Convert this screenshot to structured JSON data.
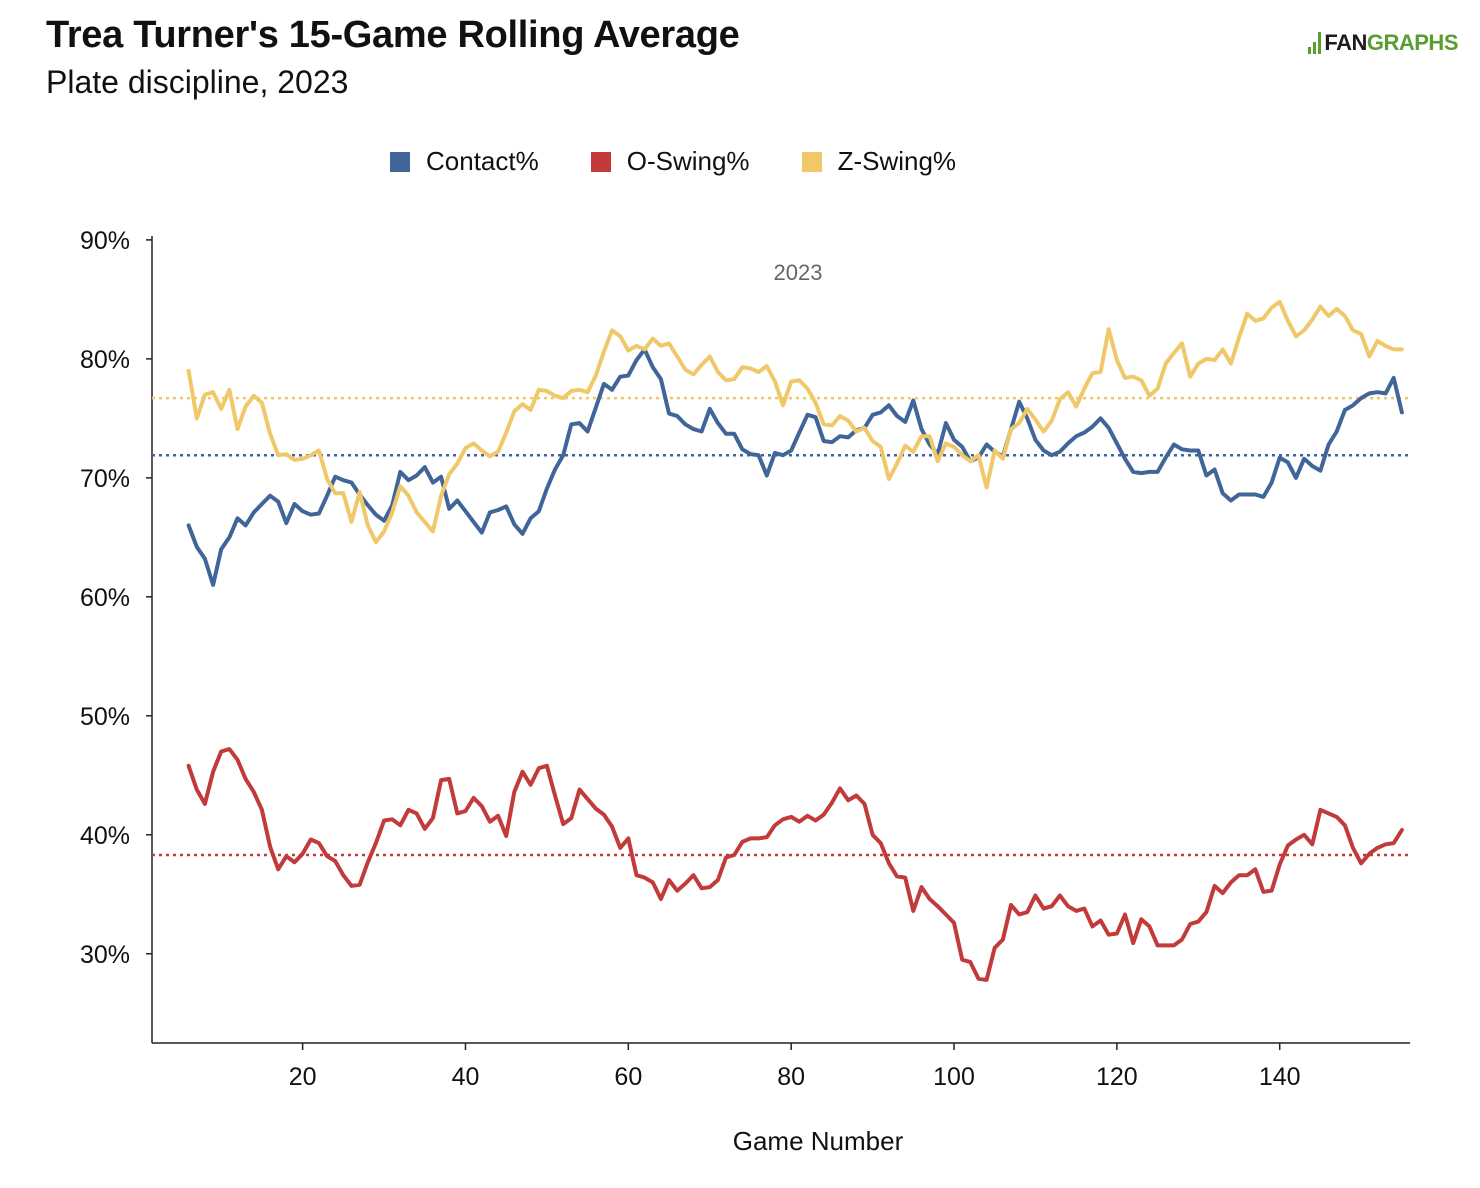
{
  "header": {
    "title": "Trea Turner's 15-Game Rolling Average",
    "subtitle": "Plate discipline, 2023",
    "logo_text_a": "FAN",
    "logo_text_b": "GRAPHS"
  },
  "colors": {
    "contact": "#3f6599",
    "oswing": "#c23a3a",
    "zswing": "#f0c869",
    "axis": "#222222",
    "logo_green": "#5a9e2f"
  },
  "chart_data": {
    "type": "line",
    "title": "Trea Turner's 15-Game Rolling Average",
    "subtitle": "Plate discipline, 2023",
    "xlabel": "Game Number",
    "ylabel": "",
    "xlim": [
      1.5,
      156
    ],
    "ylim": [
      22.5,
      91
    ],
    "x_ticks": [
      20,
      40,
      60,
      80,
      100,
      120,
      140
    ],
    "y_ticks": [
      30,
      40,
      50,
      60,
      70,
      80,
      90
    ],
    "y_tick_labels": [
      "30%",
      "40%",
      "50%",
      "60%",
      "70%",
      "80%",
      "90%"
    ],
    "annotation": "2023",
    "legend": [
      "Contact%",
      "O-Swing%",
      "Z-Swing%"
    ],
    "legend_position": "top",
    "grid": false,
    "reference_lines": [
      {
        "series": "Contact%",
        "value": 71.9
      },
      {
        "series": "O-Swing%",
        "value": 38.3
      },
      {
        "series": "Z-Swing%",
        "value": 76.7
      }
    ],
    "series": [
      {
        "name": "Contact%",
        "x": [
          6,
          7,
          8,
          9,
          10,
          11,
          12,
          13,
          14,
          15,
          16,
          17,
          18,
          19,
          20,
          21,
          22,
          23,
          24,
          25,
          26,
          27,
          28,
          29,
          30,
          31,
          32,
          33,
          34,
          35,
          36,
          37,
          38,
          39,
          40,
          41,
          42,
          43,
          44,
          45,
          46,
          47,
          48,
          49,
          50,
          51,
          52,
          53,
          54,
          55,
          56,
          57,
          58,
          59,
          60,
          61,
          62,
          63,
          64,
          65,
          66,
          67,
          68,
          69,
          70,
          71,
          72,
          73,
          74,
          75,
          76,
          77,
          78,
          79,
          80,
          81,
          82,
          83,
          84,
          85,
          86,
          87,
          88,
          89,
          90,
          91,
          92,
          93,
          94,
          95,
          96,
          97,
          98,
          99,
          100,
          101,
          102,
          103,
          104,
          105,
          106,
          107,
          108,
          109,
          110,
          111,
          112,
          113,
          114,
          115,
          116,
          117,
          118,
          119,
          120,
          121,
          122,
          123,
          124,
          125,
          126,
          127,
          128,
          129,
          130,
          131,
          132,
          133,
          134,
          135,
          136,
          137,
          138,
          139,
          140,
          141,
          142,
          143,
          144,
          145,
          146,
          147,
          148,
          149,
          150,
          151,
          152,
          153,
          154,
          155
        ],
        "values": [
          66.0,
          64.2,
          63.2,
          61.0,
          64.0,
          65.0,
          66.6,
          66.0,
          67.1,
          67.8,
          68.5,
          68.0,
          66.2,
          67.8,
          67.2,
          66.9,
          67.0,
          68.5,
          70.1,
          69.8,
          69.6,
          68.6,
          67.7,
          66.9,
          66.4,
          67.7,
          70.5,
          69.8,
          70.2,
          70.9,
          69.6,
          70.1,
          67.4,
          68.1,
          67.2,
          66.3,
          65.4,
          67.1,
          67.3,
          67.6,
          66.1,
          65.3,
          66.6,
          67.2,
          69.1,
          70.7,
          71.9,
          74.5,
          74.6,
          73.9,
          75.9,
          77.9,
          77.4,
          78.5,
          78.6,
          79.9,
          80.8,
          79.3,
          78.3,
          75.4,
          75.2,
          74.5,
          74.1,
          73.9,
          75.8,
          74.6,
          73.7,
          73.7,
          72.4,
          72.0,
          71.9,
          70.2,
          72.1,
          71.9,
          72.3,
          73.8,
          75.3,
          75.1,
          73.1,
          73.0,
          73.5,
          73.4,
          74.0,
          74.2,
          75.3,
          75.5,
          76.1,
          75.2,
          74.7,
          76.5,
          74.1,
          72.8,
          72.0,
          74.6,
          73.2,
          72.6,
          71.4,
          71.7,
          72.8,
          72.2,
          71.8,
          74.1,
          76.4,
          75.0,
          73.2,
          72.3,
          71.9,
          72.2,
          72.9,
          73.5,
          73.8,
          74.3,
          75.0,
          74.2,
          72.9,
          71.6,
          70.5,
          70.4,
          70.5,
          70.5,
          71.7,
          72.8,
          72.4,
          72.3,
          72.3,
          70.2,
          70.7,
          68.7,
          68.1,
          68.6,
          68.6,
          68.6,
          68.4,
          69.6,
          71.7,
          71.3,
          70.0,
          71.6,
          71.0,
          70.6,
          72.8,
          73.9,
          75.7,
          76.1,
          76.7,
          77.1,
          77.2,
          77.1,
          78.4,
          75.5
        ]
      },
      {
        "name": "O-Swing%",
        "x": [
          6,
          7,
          8,
          9,
          10,
          11,
          12,
          13,
          14,
          15,
          16,
          17,
          18,
          19,
          20,
          21,
          22,
          23,
          24,
          25,
          26,
          27,
          28,
          29,
          30,
          31,
          32,
          33,
          34,
          35,
          36,
          37,
          38,
          39,
          40,
          41,
          42,
          43,
          44,
          45,
          46,
          47,
          48,
          49,
          50,
          51,
          52,
          53,
          54,
          55,
          56,
          57,
          58,
          59,
          60,
          61,
          62,
          63,
          64,
          65,
          66,
          67,
          68,
          69,
          70,
          71,
          72,
          73,
          74,
          75,
          76,
          77,
          78,
          79,
          80,
          81,
          82,
          83,
          84,
          85,
          86,
          87,
          88,
          89,
          90,
          91,
          92,
          93,
          94,
          95,
          96,
          97,
          98,
          99,
          100,
          101,
          102,
          103,
          104,
          105,
          106,
          107,
          108,
          109,
          110,
          111,
          112,
          113,
          114,
          115,
          116,
          117,
          118,
          119,
          120,
          121,
          122,
          123,
          124,
          125,
          126,
          127,
          128,
          129,
          130,
          131,
          132,
          133,
          134,
          135,
          136,
          137,
          138,
          139,
          140,
          141,
          142,
          143,
          144,
          145,
          146,
          147,
          148,
          149,
          150,
          151,
          152,
          153,
          154,
          155
        ],
        "values": [
          45.8,
          43.8,
          42.6,
          45.3,
          47.0,
          47.2,
          46.3,
          44.7,
          43.6,
          42.1,
          39.0,
          37.1,
          38.2,
          37.7,
          38.4,
          39.6,
          39.3,
          38.2,
          37.8,
          36.6,
          35.7,
          35.8,
          37.7,
          39.3,
          41.2,
          41.3,
          40.8,
          42.1,
          41.8,
          40.5,
          41.4,
          44.6,
          44.7,
          41.8,
          42.0,
          43.1,
          42.4,
          41.1,
          41.6,
          39.9,
          43.6,
          45.3,
          44.2,
          45.6,
          45.8,
          43.3,
          40.9,
          41.4,
          43.8,
          43.0,
          42.2,
          41.7,
          40.7,
          38.9,
          39.7,
          36.6,
          36.4,
          36.0,
          34.6,
          36.2,
          35.3,
          35.9,
          36.6,
          35.5,
          35.6,
          36.2,
          38.1,
          38.3,
          39.4,
          39.7,
          39.7,
          39.8,
          40.8,
          41.3,
          41.5,
          41.1,
          41.6,
          41.2,
          41.7,
          42.7,
          43.9,
          42.9,
          43.3,
          42.6,
          40.0,
          39.3,
          37.6,
          36.5,
          36.4,
          33.6,
          35.6,
          34.6,
          34.0,
          33.3,
          32.6,
          29.5,
          29.3,
          27.9,
          27.8,
          30.5,
          31.2,
          34.1,
          33.3,
          33.5,
          34.9,
          33.8,
          34.0,
          34.9,
          34.0,
          33.6,
          33.8,
          32.3,
          32.8,
          31.6,
          31.7,
          33.3,
          30.9,
          32.9,
          32.3,
          30.7,
          30.7,
          30.7,
          31.2,
          32.5,
          32.7,
          33.5,
          35.7,
          35.1,
          36.0,
          36.6,
          36.6,
          37.1,
          35.2,
          35.3,
          37.5,
          39.1,
          39.6,
          40.0,
          39.2,
          42.1,
          41.8,
          41.5,
          40.8,
          38.9,
          37.6,
          38.4,
          38.9,
          39.2,
          39.3,
          40.4
        ]
      },
      {
        "name": "Z-Swing%",
        "x": [
          6,
          7,
          8,
          9,
          10,
          11,
          12,
          13,
          14,
          15,
          16,
          17,
          18,
          19,
          20,
          21,
          22,
          23,
          24,
          25,
          26,
          27,
          28,
          29,
          30,
          31,
          32,
          33,
          34,
          35,
          36,
          37,
          38,
          39,
          40,
          41,
          42,
          43,
          44,
          45,
          46,
          47,
          48,
          49,
          50,
          51,
          52,
          53,
          54,
          55,
          56,
          57,
          58,
          59,
          60,
          61,
          62,
          63,
          64,
          65,
          66,
          67,
          68,
          69,
          70,
          71,
          72,
          73,
          74,
          75,
          76,
          77,
          78,
          79,
          80,
          81,
          82,
          83,
          84,
          85,
          86,
          87,
          88,
          89,
          90,
          91,
          92,
          93,
          94,
          95,
          96,
          97,
          98,
          99,
          100,
          101,
          102,
          103,
          104,
          105,
          106,
          107,
          108,
          109,
          110,
          111,
          112,
          113,
          114,
          115,
          116,
          117,
          118,
          119,
          120,
          121,
          122,
          123,
          124,
          125,
          126,
          127,
          128,
          129,
          130,
          131,
          132,
          133,
          134,
          135,
          136,
          137,
          138,
          139,
          140,
          141,
          142,
          143,
          144,
          145,
          146,
          147,
          148,
          149,
          150,
          151,
          152,
          153,
          154,
          155
        ],
        "values": [
          79.0,
          75.0,
          77.0,
          77.2,
          75.8,
          77.4,
          74.1,
          76.0,
          76.9,
          76.3,
          73.7,
          71.9,
          72.0,
          71.5,
          71.6,
          71.9,
          72.3,
          69.9,
          68.7,
          68.7,
          66.3,
          68.8,
          66.0,
          64.6,
          65.5,
          67.1,
          69.3,
          68.5,
          67.1,
          66.3,
          65.5,
          68.5,
          70.3,
          71.2,
          72.5,
          72.9,
          72.3,
          71.8,
          72.2,
          73.8,
          75.6,
          76.2,
          75.7,
          77.4,
          77.3,
          76.9,
          76.7,
          77.3,
          77.4,
          77.2,
          78.6,
          80.6,
          82.4,
          81.9,
          80.7,
          81.1,
          80.8,
          81.7,
          81.1,
          81.3,
          80.2,
          79.1,
          78.7,
          79.5,
          80.2,
          78.9,
          78.2,
          78.3,
          79.3,
          79.2,
          78.9,
          79.4,
          78.1,
          76.1,
          78.1,
          78.2,
          77.5,
          76.3,
          74.5,
          74.4,
          75.2,
          74.8,
          73.9,
          74.2,
          73.1,
          72.6,
          69.9,
          71.2,
          72.7,
          72.2,
          73.5,
          73.5,
          71.4,
          72.9,
          72.6,
          71.9,
          71.4,
          71.9,
          69.2,
          72.3,
          71.6,
          74.1,
          74.6,
          75.8,
          74.9,
          73.9,
          74.8,
          76.6,
          77.2,
          76.0,
          77.5,
          78.8,
          78.9,
          82.5,
          79.9,
          78.4,
          78.5,
          78.2,
          76.9,
          77.5,
          79.6,
          80.5,
          81.3,
          78.5,
          79.6,
          80.0,
          79.9,
          80.8,
          79.6,
          81.8,
          83.8,
          83.2,
          83.4,
          84.3,
          84.8,
          83.2,
          81.9,
          82.4,
          83.3,
          84.4,
          83.6,
          84.2,
          83.6,
          82.4,
          82.1,
          80.2,
          81.5,
          81.1,
          80.8,
          80.8
        ]
      }
    ]
  }
}
